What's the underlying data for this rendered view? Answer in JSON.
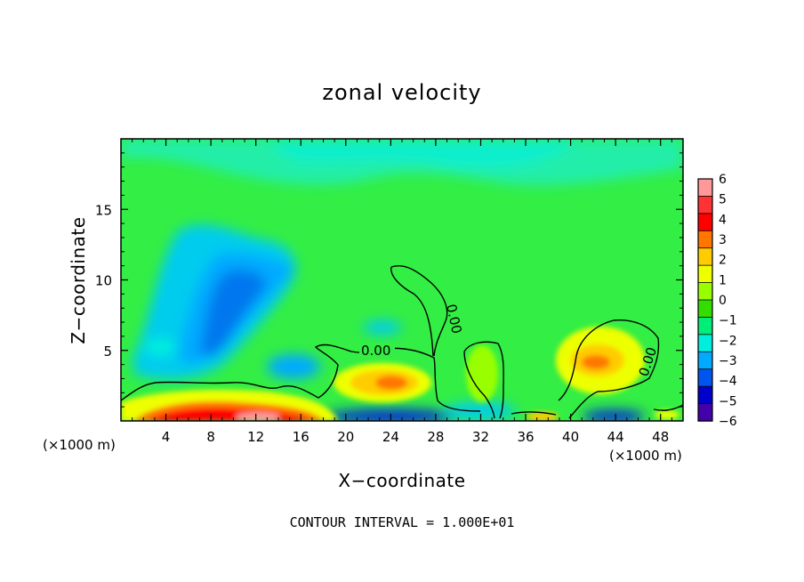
{
  "chart_data": {
    "type": "heatmap",
    "title": "zonal velocity",
    "xlabel": "X−coordinate",
    "ylabel": "Z−coordinate",
    "x_unit": "(×1000 m)",
    "x_unit_right": "(×1000 m)",
    "xlim": [
      0,
      50
    ],
    "ylim": [
      0,
      20
    ],
    "x_ticks": [
      4,
      8,
      12,
      16,
      20,
      24,
      28,
      32,
      36,
      40,
      44,
      48
    ],
    "x_tick_labels": [
      "4",
      "8",
      "12",
      "16",
      "20",
      "24",
      "28",
      "32",
      "36",
      "40",
      "44",
      "48"
    ],
    "y_ticks": [
      5,
      10,
      15
    ],
    "y_tick_labels": [
      "5",
      "10",
      "15"
    ],
    "colorbar": {
      "levels": [
        6,
        5,
        4,
        3,
        2,
        1,
        0,
        -1,
        -2,
        -3,
        -4,
        -5,
        -6
      ],
      "labels": [
        "6",
        "5",
        "4",
        "3",
        "2",
        "1",
        "0",
        "−1",
        "−2",
        "−3",
        "−4",
        "−5",
        "−6"
      ],
      "colors": [
        "#ff9999",
        "#ff3333",
        "#ff0000",
        "#ff7700",
        "#ffcc00",
        "#eeff00",
        "#99ff00",
        "#33dd00",
        "#00ee77",
        "#00eedd",
        "#00aaff",
        "#0055ee",
        "#0000cc",
        "#4400aa"
      ]
    },
    "background_color": "#33ee44",
    "contour_labels": [
      "0.00",
      "0.00",
      "0.00"
    ],
    "contour_interval_text": "CONTOUR INTERVAL = 1.000E+01",
    "features": [
      {
        "kind": "negative",
        "x": 9,
        "z": 8.5,
        "value": -3
      },
      {
        "kind": "negative",
        "x": 12,
        "z": 11,
        "value": -2.5
      },
      {
        "kind": "negative",
        "x": 14,
        "z": 4,
        "value": -2.5
      },
      {
        "kind": "negative",
        "x": 23,
        "z": 6.8,
        "value": -2
      },
      {
        "kind": "negative",
        "x": 22,
        "z": 0.3,
        "value": -5
      },
      {
        "kind": "negative",
        "x": 44,
        "z": 0.5,
        "value": -5
      },
      {
        "kind": "positive",
        "x": 9,
        "z": 0.6,
        "value": 5
      },
      {
        "kind": "positive",
        "x": 14,
        "z": 0.8,
        "value": 4.5
      },
      {
        "kind": "positive",
        "x": 23.5,
        "z": 2.8,
        "value": 3
      },
      {
        "kind": "positive",
        "x": 32,
        "z": 3,
        "value": 1.5
      },
      {
        "kind": "positive",
        "x": 43,
        "z": 4.2,
        "value": 3.5
      },
      {
        "kind": "positive",
        "x": 37,
        "z": 0.4,
        "value": 3
      }
    ]
  }
}
